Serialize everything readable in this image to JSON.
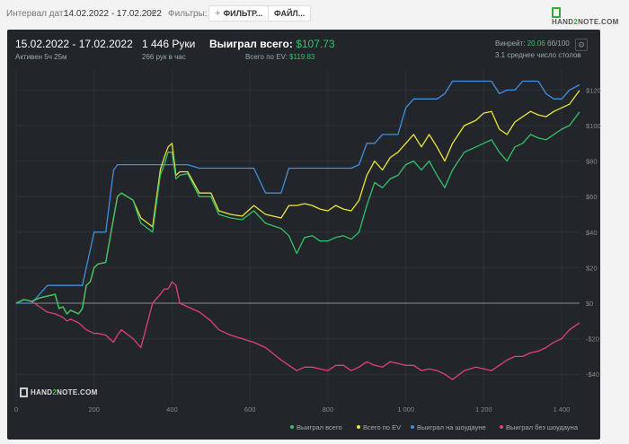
{
  "toolbar": {
    "interval_label": "Интервал дат:",
    "interval_value": "14.02.2022 - 17.02.2022",
    "filters_label": "Фильтры:",
    "filters_button": "ФИЛЬТР...",
    "files_button": "ФАЙЛ...",
    "logo_text_a": "HAND",
    "logo_text_b": "2",
    "logo_text_c": "NOTE.COM"
  },
  "header": {
    "dates": "15.02.2022 - 17.02.2022",
    "active": "Активен 5ч 25м",
    "hands": "1 446 Руки",
    "hands_per_hour": "266 рук в час",
    "won_total_label": "Выиграл всего:",
    "won_total_value": "$107.73",
    "ev_label": "Всего по EV:",
    "ev_value": "$119.83",
    "winrate_label": "Винрейт:",
    "winrate_value": "20.06",
    "winrate_suffix": "бб/100",
    "avg_tables": "3.1 среднее число столов"
  },
  "watermark": {
    "a": "HAND",
    "b": "2",
    "c": "NOTE.COM"
  },
  "colors": {
    "green": "#37c06a",
    "yellow": "#e9e63b",
    "blue": "#3f8fe0",
    "pink": "#e0407a"
  },
  "chart_data": {
    "type": "line",
    "x_tick_labels": [
      "0",
      "200",
      "400",
      "600",
      "800",
      "1 000",
      "1 200",
      "1 400"
    ],
    "x_ticks": [
      0,
      200,
      400,
      600,
      800,
      1000,
      1200,
      1400
    ],
    "y_tick_labels": [
      "$120",
      "$100",
      "$80",
      "$60",
      "$40",
      "$20",
      "$0",
      "-$20",
      "-$40"
    ],
    "y_ticks": [
      120,
      100,
      80,
      60,
      40,
      20,
      0,
      -20,
      -40
    ],
    "xlim": [
      0,
      1446
    ],
    "ylim": [
      -50,
      130
    ],
    "legend_position": "bottom-right",
    "series": [
      {
        "name": "Выиграл всего",
        "color": "#37c06a",
        "x": [
          0,
          20,
          40,
          60,
          80,
          100,
          110,
          120,
          130,
          140,
          150,
          160,
          170,
          180,
          190,
          200,
          210,
          230,
          250,
          260,
          270,
          300,
          320,
          350,
          370,
          380,
          390,
          400,
          410,
          420,
          440,
          470,
          500,
          520,
          550,
          580,
          610,
          640,
          680,
          700,
          720,
          740,
          760,
          780,
          800,
          820,
          840,
          860,
          880,
          900,
          920,
          940,
          960,
          980,
          1000,
          1020,
          1040,
          1060,
          1080,
          1100,
          1120,
          1150,
          1180,
          1200,
          1220,
          1240,
          1260,
          1280,
          1300,
          1320,
          1340,
          1360,
          1380,
          1400,
          1420,
          1446
        ],
        "y": [
          0,
          2,
          1,
          3,
          4,
          5,
          -3,
          -2,
          -6,
          -4,
          -5,
          -6,
          -3,
          10,
          12,
          20,
          22,
          23,
          48,
          60,
          62,
          58,
          45,
          40,
          72,
          78,
          85,
          85,
          70,
          72,
          73,
          60,
          60,
          50,
          48,
          47,
          52,
          45,
          42,
          38,
          28,
          37,
          38,
          35,
          35,
          37,
          38,
          36,
          40,
          55,
          68,
          65,
          70,
          72,
          78,
          80,
          75,
          80,
          72,
          65,
          75,
          85,
          88,
          90,
          92,
          85,
          80,
          88,
          90,
          95,
          93,
          92,
          95,
          98,
          100,
          107.73
        ]
      },
      {
        "name": "Всего по EV",
        "color": "#e9e63b",
        "x": [
          0,
          20,
          40,
          60,
          80,
          100,
          110,
          120,
          130,
          140,
          150,
          160,
          170,
          180,
          190,
          200,
          210,
          230,
          250,
          260,
          270,
          300,
          320,
          350,
          370,
          380,
          390,
          400,
          410,
          420,
          440,
          470,
          500,
          520,
          550,
          580,
          610,
          640,
          680,
          700,
          720,
          740,
          760,
          780,
          800,
          820,
          840,
          860,
          880,
          900,
          920,
          940,
          960,
          980,
          1000,
          1020,
          1040,
          1060,
          1080,
          1100,
          1120,
          1150,
          1180,
          1200,
          1220,
          1240,
          1260,
          1280,
          1300,
          1320,
          1340,
          1360,
          1380,
          1400,
          1420,
          1446
        ],
        "y": [
          0,
          2,
          1,
          3,
          4,
          5,
          -3,
          -2,
          -6,
          -4,
          -5,
          -6,
          -3,
          10,
          12,
          20,
          22,
          23,
          48,
          60,
          62,
          58,
          48,
          43,
          75,
          82,
          88,
          90,
          72,
          74,
          74,
          62,
          62,
          52,
          50,
          49,
          55,
          50,
          48,
          55,
          55,
          56,
          55,
          53,
          52,
          55,
          53,
          52,
          58,
          72,
          80,
          75,
          82,
          85,
          90,
          95,
          88,
          95,
          88,
          80,
          90,
          100,
          103,
          107,
          108,
          98,
          95,
          102,
          105,
          108,
          106,
          105,
          108,
          110,
          112,
          119.83
        ]
      },
      {
        "name": "Выиграл на шоудауне",
        "color": "#3f8fe0",
        "x": [
          0,
          20,
          40,
          60,
          80,
          100,
          110,
          120,
          130,
          140,
          150,
          160,
          170,
          180,
          190,
          200,
          210,
          230,
          250,
          260,
          270,
          300,
          320,
          350,
          370,
          380,
          390,
          400,
          410,
          420,
          440,
          470,
          500,
          520,
          550,
          580,
          610,
          640,
          680,
          700,
          720,
          740,
          760,
          780,
          800,
          820,
          840,
          860,
          880,
          900,
          920,
          940,
          960,
          980,
          1000,
          1020,
          1040,
          1060,
          1080,
          1100,
          1120,
          1150,
          1180,
          1200,
          1220,
          1240,
          1260,
          1280,
          1300,
          1320,
          1340,
          1360,
          1380,
          1400,
          1420,
          1446
        ],
        "y": [
          0,
          0,
          0,
          5,
          10,
          10,
          10,
          10,
          10,
          10,
          10,
          10,
          10,
          20,
          30,
          40,
          40,
          40,
          75,
          78,
          78,
          78,
          78,
          78,
          78,
          78,
          78,
          78,
          78,
          78,
          78,
          76,
          76,
          76,
          76,
          76,
          76,
          62,
          62,
          76,
          76,
          76,
          76,
          76,
          76,
          76,
          76,
          76,
          78,
          90,
          90,
          95,
          95,
          95,
          110,
          115,
          115,
          115,
          115,
          118,
          125,
          125,
          125,
          125,
          125,
          118,
          120,
          120,
          125,
          125,
          125,
          118,
          115,
          115,
          120,
          123
        ]
      },
      {
        "name": "Выиграл без шоудауна",
        "color": "#e0407a",
        "x": [
          0,
          20,
          40,
          60,
          80,
          100,
          110,
          120,
          130,
          140,
          150,
          160,
          170,
          180,
          190,
          200,
          210,
          230,
          250,
          260,
          270,
          300,
          320,
          350,
          370,
          380,
          390,
          400,
          410,
          420,
          440,
          470,
          500,
          520,
          550,
          580,
          610,
          640,
          680,
          700,
          720,
          740,
          760,
          780,
          800,
          820,
          840,
          860,
          880,
          900,
          920,
          940,
          960,
          980,
          1000,
          1020,
          1040,
          1060,
          1080,
          1100,
          1120,
          1150,
          1180,
          1200,
          1220,
          1240,
          1260,
          1280,
          1300,
          1320,
          1340,
          1360,
          1380,
          1400,
          1420,
          1446
        ],
        "y": [
          0,
          2,
          1,
          -2,
          -5,
          -6,
          -7,
          -8,
          -10,
          -9,
          -10,
          -11,
          -13,
          -15,
          -16,
          -17,
          -17,
          -18,
          -22,
          -18,
          -15,
          -20,
          -25,
          0,
          5,
          8,
          8,
          12,
          10,
          0,
          -2,
          -5,
          -10,
          -15,
          -18,
          -20,
          -22,
          -25,
          -32,
          -35,
          -38,
          -36,
          -36,
          -37,
          -38,
          -35,
          -35,
          -38,
          -36,
          -33,
          -35,
          -36,
          -33,
          -34,
          -35,
          -35,
          -38,
          -37,
          -38,
          -40,
          -43,
          -38,
          -36,
          -37,
          -38,
          -35,
          -32,
          -30,
          -30,
          -28,
          -27,
          -25,
          -22,
          -20,
          -15,
          -11
        ]
      }
    ]
  }
}
